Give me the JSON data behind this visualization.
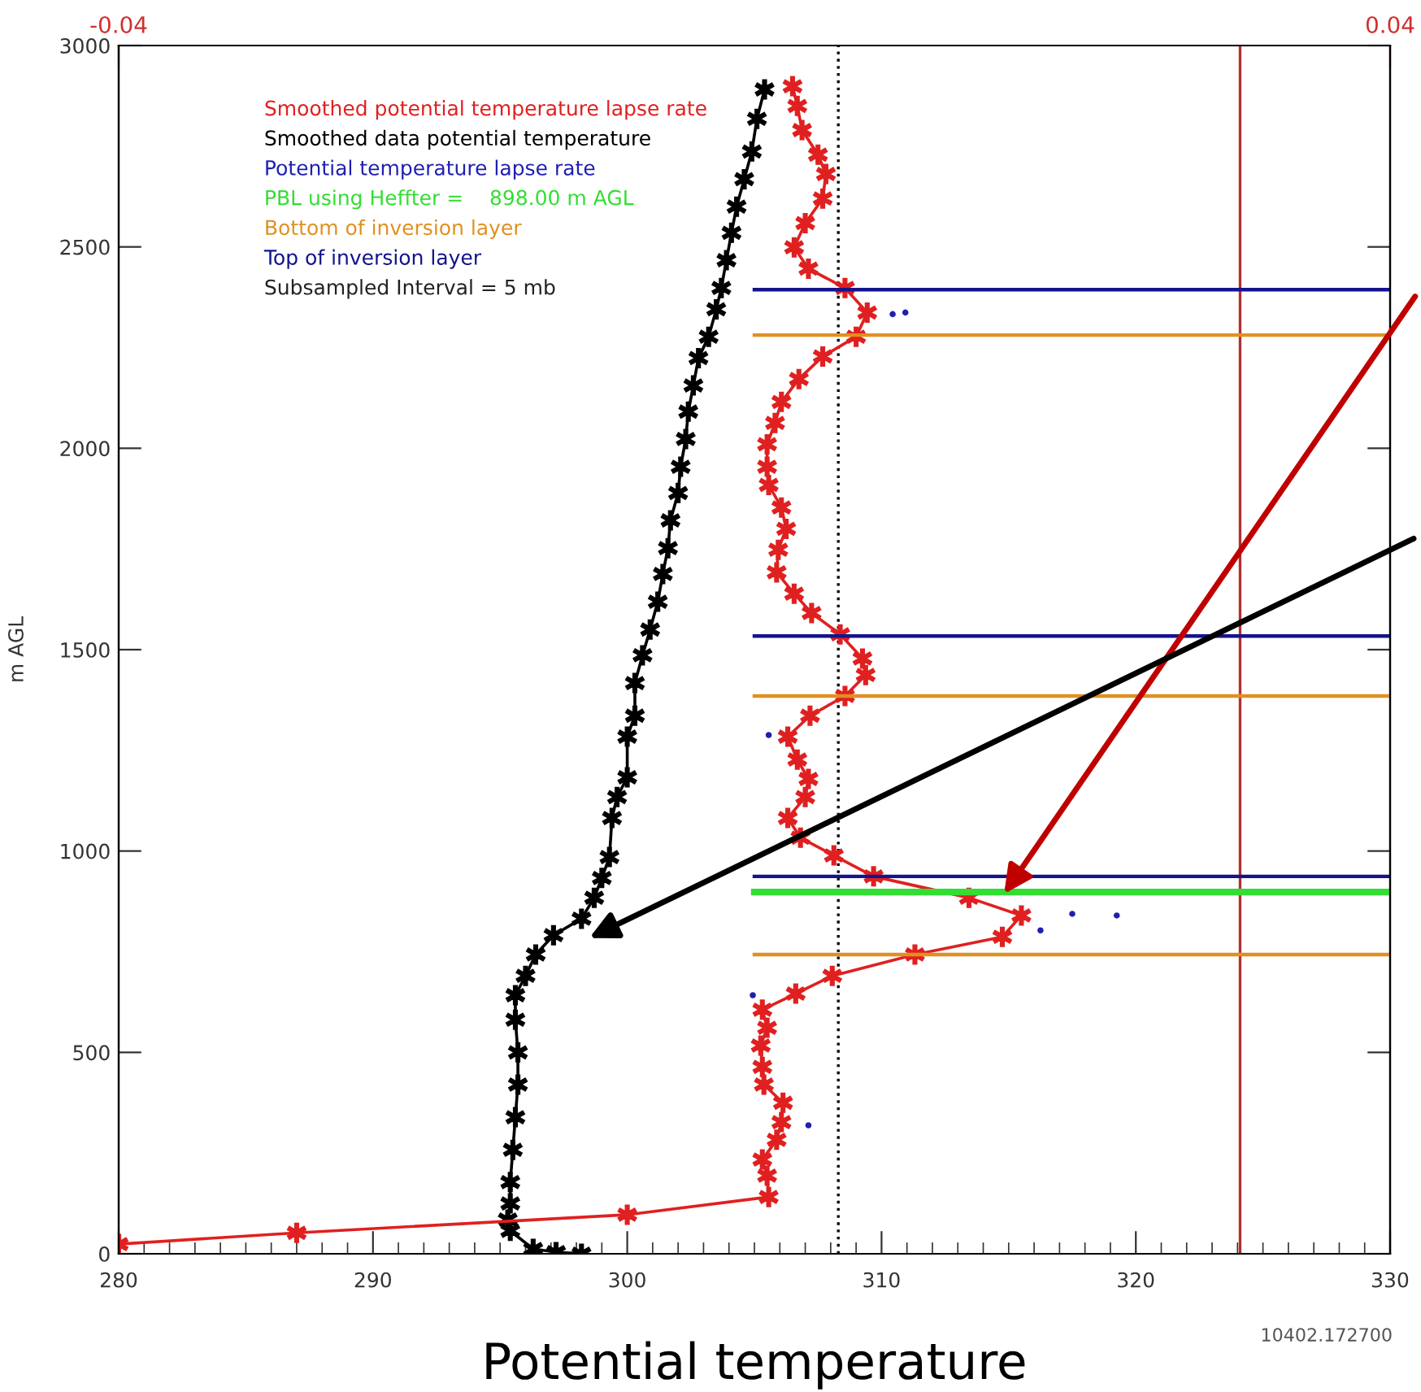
{
  "chart_data": {
    "type": "line",
    "xlabel": "Potential temperature",
    "ylabel": "m AGL",
    "xlim": [
      280,
      330
    ],
    "xticks": [
      280,
      290,
      300,
      310,
      320,
      330
    ],
    "ylim": [
      0,
      3000
    ],
    "yticks": [
      0,
      500,
      1000,
      1500,
      2000,
      2500,
      3000
    ],
    "x2lim": [
      -0.04,
      0.04
    ],
    "x2ticks": [
      -0.04,
      0.04
    ],
    "legend": "top left",
    "grid": false,
    "annotations": [
      "Subsampled Interval = 5 mb",
      "10402.172700"
    ],
    "ref_lines": [
      {
        "axis": "x",
        "value": 308.3,
        "color": "#000000",
        "line_style": "dotted"
      },
      {
        "axis": "x",
        "value": 324.1,
        "color": "#b03030",
        "line_style": "solid"
      }
    ],
    "series": [
      {
        "name": "Smoothed potential temperature lapse rate",
        "color": "#e02020",
        "axis": "x2",
        "marker": "cross",
        "line_style": "solid",
        "x": [
          0.0024,
          0.0027,
          0.003,
          0.004,
          0.0045,
          0.0043,
          0.0032,
          0.0025,
          0.0034,
          0.0057,
          0.0071,
          0.0064,
          0.0043,
          0.0028,
          0.0017,
          0.0013,
          0.0008,
          0.0008,
          0.0009,
          0.0017,
          0.002,
          0.0015,
          0.0014,
          0.0025,
          0.0036,
          0.0054,
          0.0068,
          0.007,
          0.0057,
          0.0035,
          0.0021,
          0.0027,
          0.0034,
          0.0032,
          0.0021,
          0.0029,
          0.005,
          0.0075,
          0.0135,
          0.0168,
          0.0156,
          0.0101,
          0.0049,
          0.0026,
          0.0005,
          0.0008,
          0.0004,
          0.0005,
          0.0006,
          0.0018,
          0.0017,
          0.0014,
          0.0005,
          0.0008,
          0.0009,
          -0.008,
          -0.0288,
          -0.04
        ],
        "values": [
          2899,
          2850,
          2790,
          2729,
          2681,
          2620,
          2559,
          2499,
          2446,
          2398,
          2337,
          2277,
          2228,
          2172,
          2115,
          2063,
          2010,
          1954,
          1909,
          1853,
          1800,
          1748,
          1692,
          1639,
          1591,
          1538,
          1478,
          1437,
          1385,
          1336,
          1284,
          1227,
          1179,
          1134,
          1082,
          1033,
          989,
          937,
          884,
          840,
          787,
          743,
          690,
          646,
          606,
          561,
          517,
          464,
          420,
          375,
          327,
          283,
          234,
          194,
          141,
          97,
          52,
          24
        ]
      },
      {
        "name": "Smoothed data potential temperature",
        "color": "#000000",
        "marker": "cross",
        "line_style": "solid",
        "x": [
          305.4,
          305.1,
          304.9,
          304.6,
          304.3,
          304.1,
          303.9,
          303.7,
          303.5,
          303.2,
          302.8,
          302.6,
          302.4,
          302.3,
          302.1,
          302.0,
          301.7,
          301.6,
          301.4,
          301.2,
          300.9,
          300.6,
          300.3,
          300.3,
          300.0,
          300.0,
          299.6,
          299.4,
          299.3,
          299.0,
          298.7,
          298.2,
          297.1,
          296.4,
          296.0,
          295.6,
          295.6,
          295.7,
          295.7,
          295.6,
          295.5,
          295.4,
          295.4,
          295.3,
          295.4,
          296.3,
          297.2,
          298.2
        ],
        "values": [
          2891,
          2818,
          2737,
          2668,
          2600,
          2535,
          2467,
          2398,
          2345,
          2277,
          2224,
          2156,
          2091,
          2023,
          1954,
          1889,
          1821,
          1752,
          1688,
          1619,
          1550,
          1486,
          1417,
          1336,
          1284,
          1183,
          1134,
          1082,
          985,
          933,
          884,
          832,
          791,
          743,
          690,
          642,
          581,
          500,
          420,
          339,
          258,
          178,
          125,
          85,
          57,
          12,
          4,
          0
        ]
      },
      {
        "name": "Potential temperature lapse rate",
        "color": "#2020b0",
        "axis": "x2",
        "type": "scatter",
        "marker": "circle",
        "x": [
          0.0087,
          0.0095,
          0.0228,
          0.02,
          0.018,
          0.0034,
          -0.0001,
          0.0009
        ],
        "values": [
          2333,
          2337,
          840,
          844,
          803,
          319,
          642,
          1288
        ]
      },
      {
        "name": "PBL using Heffter =    898.00 m AGL",
        "color": "#33dd33",
        "axis": "x2",
        "line_style": "solid",
        "x": [
          0.0,
          0.04
        ],
        "values": [
          898,
          898
        ]
      },
      {
        "name": "Bottom of inversion layer",
        "color": "#e09020",
        "axis": "x2",
        "line_style": "solid",
        "x": [
          0.0,
          0.04
        ],
        "values": [
          743,
          743
        ]
      },
      {
        "color": "#e09020",
        "axis": "x2",
        "line_style": "solid",
        "x": [
          0.0,
          0.04
        ],
        "values": [
          1385,
          1385
        ]
      },
      {
        "color": "#e09020",
        "axis": "x2",
        "line_style": "solid",
        "x": [
          0.0,
          0.04
        ],
        "values": [
          2281,
          2281
        ]
      },
      {
        "name": "Top of inversion layer",
        "color": "#14148c",
        "axis": "x2",
        "line_style": "solid",
        "x": [
          0.0,
          0.04
        ],
        "values": [
          937,
          937
        ]
      },
      {
        "color": "#14148c",
        "axis": "x2",
        "line_style": "solid",
        "x": [
          0.0,
          0.04
        ],
        "values": [
          1534,
          1534
        ]
      },
      {
        "color": "#14148c",
        "axis": "x2",
        "line_style": "solid",
        "x": [
          0.0,
          0.04
        ],
        "values": [
          2394,
          2394
        ]
      }
    ]
  }
}
